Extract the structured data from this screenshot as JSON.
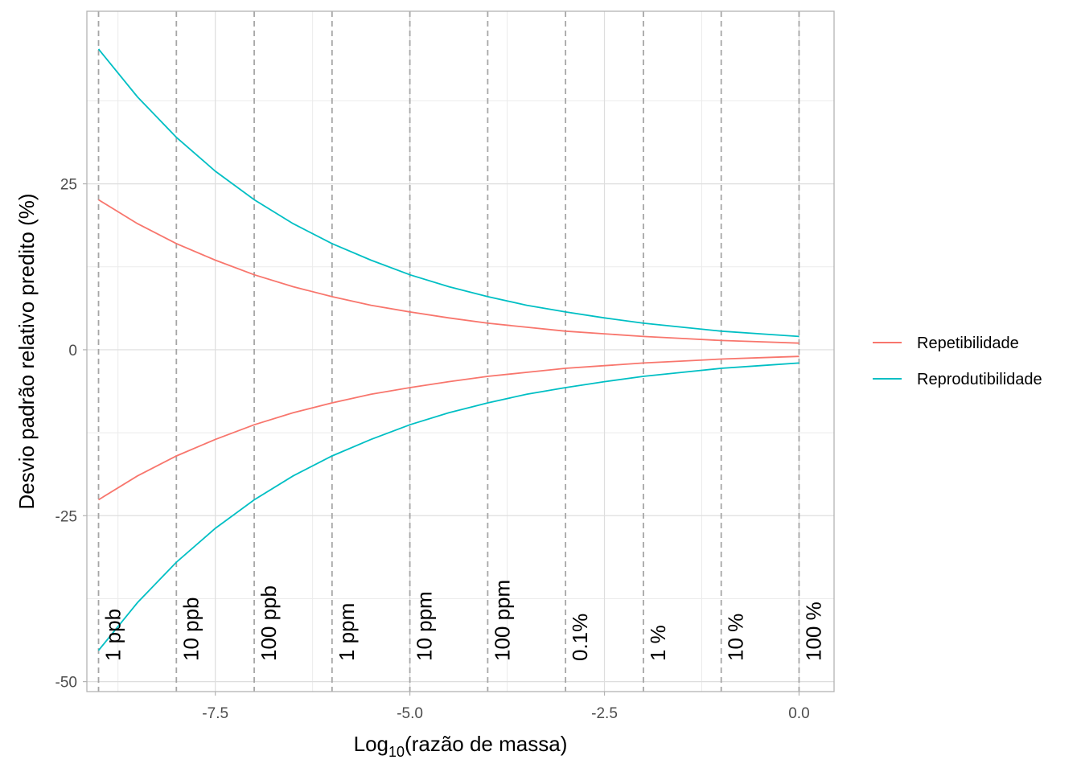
{
  "chart_data": {
    "type": "line",
    "xlabel_main": "Log",
    "xlabel_sub": "10",
    "xlabel_rest": "(razão de massa)",
    "ylabel": "Desvio padrão relativo predito (%)",
    "xlim": [
      -9.15,
      0.45
    ],
    "ylim": [
      -51.5,
      51
    ],
    "x_ticks": [
      {
        "value": -7.5,
        "label": "-7.5"
      },
      {
        "value": -5.0,
        "label": "-5.0"
      },
      {
        "value": -2.5,
        "label": "-2.5"
      },
      {
        "value": 0.0,
        "label": "0.0"
      }
    ],
    "y_ticks": [
      {
        "value": 25,
        "label": "25"
      },
      {
        "value": 0,
        "label": "0"
      },
      {
        "value": -25,
        "label": "-25"
      },
      {
        "value": -50,
        "label": "-50"
      }
    ],
    "x_minor_grid": [
      -8.75,
      -6.25,
      -3.75,
      -1.25
    ],
    "y_minor_grid": [
      37.5,
      12.5,
      -12.5,
      -37.5
    ],
    "vlines": [
      {
        "x": -9,
        "label": "1 ppb"
      },
      {
        "x": -8,
        "label": "10 ppb"
      },
      {
        "x": -7,
        "label": "100 ppb"
      },
      {
        "x": -6,
        "label": "1 ppm"
      },
      {
        "x": -5,
        "label": "10 ppm"
      },
      {
        "x": -4,
        "label": "100 ppm"
      },
      {
        "x": -3,
        "label": "0.1%"
      },
      {
        "x": -2,
        "label": "1 %"
      },
      {
        "x": -1,
        "label": "10 %"
      },
      {
        "x": 0,
        "label": "100 %"
      }
    ],
    "x": [
      -9,
      -8.5,
      -8,
      -7.5,
      -7,
      -6.5,
      -6,
      -5.5,
      -5,
      -4.5,
      -4,
      -3.5,
      -3,
      -2.5,
      -2,
      -1.5,
      -1,
      -0.5,
      0
    ],
    "series": [
      {
        "name": "Repetibilidade",
        "color": "#F8766D",
        "upper": [
          22.6,
          19.0,
          16.0,
          13.5,
          11.3,
          9.5,
          8.0,
          6.7,
          5.7,
          4.8,
          4.0,
          3.4,
          2.8,
          2.4,
          2.0,
          1.7,
          1.4,
          1.2,
          1.0
        ],
        "lower": [
          -22.6,
          -19.0,
          -16.0,
          -13.5,
          -11.3,
          -9.5,
          -8.0,
          -6.7,
          -5.7,
          -4.8,
          -4.0,
          -3.4,
          -2.8,
          -2.4,
          -2.0,
          -1.7,
          -1.4,
          -1.2,
          -1.0
        ]
      },
      {
        "name": "Reprodutibilidade",
        "color": "#00BFC4",
        "upper": [
          45.3,
          38.1,
          32.0,
          26.9,
          22.6,
          19.0,
          16.0,
          13.5,
          11.3,
          9.5,
          8.0,
          6.7,
          5.7,
          4.8,
          4.0,
          3.4,
          2.8,
          2.4,
          2.0
        ],
        "lower": [
          -45.3,
          -38.1,
          -32.0,
          -26.9,
          -22.6,
          -19.0,
          -16.0,
          -13.5,
          -11.3,
          -9.5,
          -8.0,
          -6.7,
          -5.7,
          -4.8,
          -4.0,
          -3.4,
          -2.8,
          -2.4,
          -2.0
        ]
      }
    ],
    "legend_position": "right",
    "grid": true
  }
}
